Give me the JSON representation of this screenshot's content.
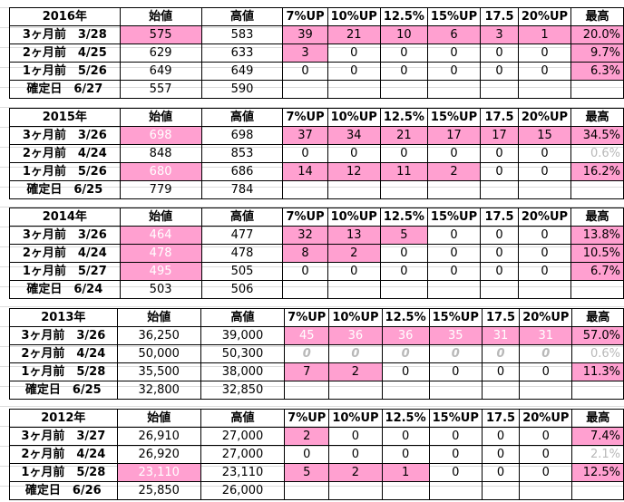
{
  "header_cols": [
    "始値",
    "高値",
    "7%UP",
    "10%UP",
    "12.5%",
    "15%UP",
    "17.5",
    "20%UP",
    "最高"
  ],
  "blocks": [
    {
      "year": "2016年",
      "rows": [
        {
          "label": "3ヶ月前　3/28",
          "open": "575",
          "high": "583",
          "vals": [
            "39",
            "21",
            "10",
            "6",
            "3",
            "1"
          ],
          "max": "20.0%"
        },
        {
          "label": "2ヶ月前　4/25",
          "open": "629",
          "high": "633",
          "vals": [
            "3",
            "0",
            "0",
            "0",
            "0",
            "0"
          ],
          "max": "9.7%"
        },
        {
          "label": "1ヶ月前　5/26",
          "open": "649",
          "high": "649",
          "vals": [
            "0",
            "0",
            "0",
            "0",
            "0",
            "0"
          ],
          "max": "6.3%"
        },
        {
          "label": "確定日　6/27",
          "open": "557",
          "high": "590"
        }
      ]
    },
    {
      "year": "2015年",
      "rows": [
        {
          "label": "3ヶ月前　3/26",
          "open": "698",
          "high": "698",
          "vals": [
            "37",
            "34",
            "21",
            "17",
            "17",
            "15"
          ],
          "max": "34.5%"
        },
        {
          "label": "2ヶ月前　4/24",
          "open": "848",
          "high": "853",
          "vals": [
            "0",
            "0",
            "0",
            "0",
            "0",
            "0"
          ],
          "max": "0.6%"
        },
        {
          "label": "1ヶ月前　5/26",
          "open": "680",
          "high": "686",
          "vals": [
            "14",
            "12",
            "11",
            "2",
            "0",
            "0"
          ],
          "max": "16.2%"
        },
        {
          "label": "確定日　6/25",
          "open": "779",
          "high": "784"
        }
      ]
    },
    {
      "year": "2014年",
      "rows": [
        {
          "label": "3ヶ月前　3/26",
          "open": "464",
          "high": "477",
          "vals": [
            "32",
            "13",
            "5",
            "0",
            "0",
            "0"
          ],
          "max": "13.8%"
        },
        {
          "label": "2ヶ月前　4/24",
          "open": "478",
          "high": "478",
          "vals": [
            "8",
            "2",
            "0",
            "0",
            "0",
            "0"
          ],
          "max": "10.5%"
        },
        {
          "label": "1ヶ月前　5/27",
          "open": "495",
          "high": "505",
          "vals": [
            "0",
            "0",
            "0",
            "0",
            "0",
            "0"
          ],
          "max": "6.7%"
        },
        {
          "label": "確定日　6/24",
          "open": "503",
          "high": "506"
        }
      ]
    },
    {
      "year": "2013年",
      "rows": [
        {
          "label": "3ヶ月前　3/26",
          "open": "36,250",
          "high": "39,000",
          "vals": [
            "45",
            "36",
            "36",
            "35",
            "31",
            "31"
          ],
          "max": "57.0%"
        },
        {
          "label": "2ヶ月前　4/24",
          "open": "50,000",
          "high": "50,300",
          "vals": [
            "0",
            "0",
            "0",
            "0",
            "0",
            "0"
          ],
          "max": "0.6%"
        },
        {
          "label": "1ヶ月前　5/28",
          "open": "35,500",
          "high": "38,000",
          "vals": [
            "7",
            "2",
            "0",
            "0",
            "0",
            "0"
          ],
          "max": "11.3%"
        },
        {
          "label": "確定日　6/25",
          "open": "32,800",
          "high": "32,850"
        }
      ]
    },
    {
      "year": "2012年",
      "rows": [
        {
          "label": "3ヶ月前　3/27",
          "open": "26,910",
          "high": "27,000",
          "vals": [
            "2",
            "0",
            "0",
            "0",
            "0",
            "0"
          ],
          "max": "7.4%"
        },
        {
          "label": "2ヶ月前　4/24",
          "open": "26,920",
          "high": "27,000",
          "vals": [
            "0",
            "0",
            "0",
            "0",
            "0",
            "0"
          ],
          "max": "2.1%"
        },
        {
          "label": "1ヶ月前　5/28",
          "open": "23,110",
          "high": "23,110",
          "vals": [
            "5",
            "2",
            "1",
            "0",
            "0",
            "0"
          ],
          "max": "12.5%"
        },
        {
          "label": "確定日　6/26",
          "open": "25,850",
          "high": "26,000"
        }
      ]
    }
  ],
  "colors": {
    "highlight": "#ffa0d0",
    "muted": "#b8b8b8"
  }
}
